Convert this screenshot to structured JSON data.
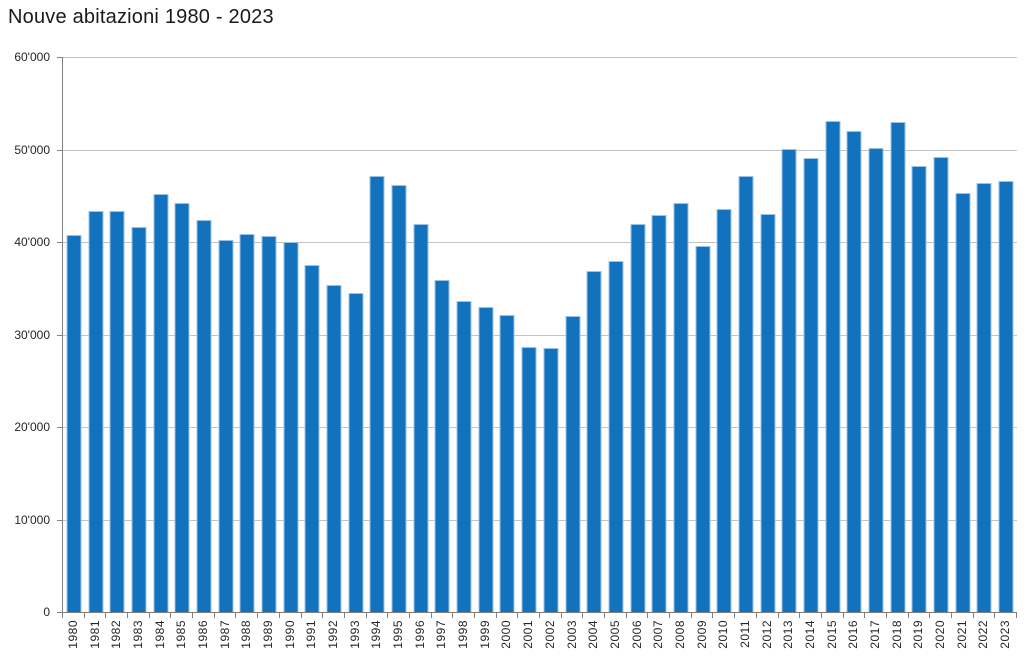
{
  "title": "Nouve abitazioni 1980 - 2023",
  "chart_data": {
    "type": "bar",
    "title": "Nouve abitazioni 1980 - 2023",
    "xlabel": "",
    "ylabel": "",
    "categories": [
      "1980",
      "1981",
      "1982",
      "1983",
      "1984",
      "1985",
      "1986",
      "1987",
      "1988",
      "1989",
      "1990",
      "1991",
      "1992",
      "1993",
      "1994",
      "1995",
      "1996",
      "1997",
      "1998",
      "1999",
      "2000",
      "2001",
      "2002",
      "2003",
      "2004",
      "2005",
      "2006",
      "2007",
      "2008",
      "2009",
      "2010",
      "2011",
      "2012",
      "2013",
      "2014",
      "2015",
      "2016",
      "2017",
      "2018",
      "2019",
      "2020",
      "2021",
      "2022",
      "2023"
    ],
    "values": [
      40800,
      43300,
      43400,
      41600,
      45200,
      44200,
      42400,
      40200,
      40900,
      40600,
      40000,
      37500,
      35300,
      34500,
      47100,
      46200,
      41900,
      35900,
      33600,
      33000,
      32100,
      28700,
      28500,
      32000,
      36900,
      37900,
      41900,
      42900,
      44200,
      39600,
      43600,
      47100,
      43000,
      50100,
      49100,
      53100,
      52000,
      50200,
      53000,
      48200,
      49200,
      45300,
      46400,
      46600
    ],
    "ylim": [
      0,
      60000
    ],
    "ytick_interval": 10000,
    "ytick_labels": [
      "0",
      "10'000",
      "20'000",
      "30'000",
      "40'000",
      "50'000",
      "60'000"
    ],
    "grid": true,
    "legend": false,
    "colors": {
      "bar": "#1272BE",
      "bar_border": "#9CC3E6",
      "gridline": "#C3C3C3",
      "axis": "#808080",
      "tick_label": "#262626",
      "title": "#1A1A1A"
    }
  }
}
